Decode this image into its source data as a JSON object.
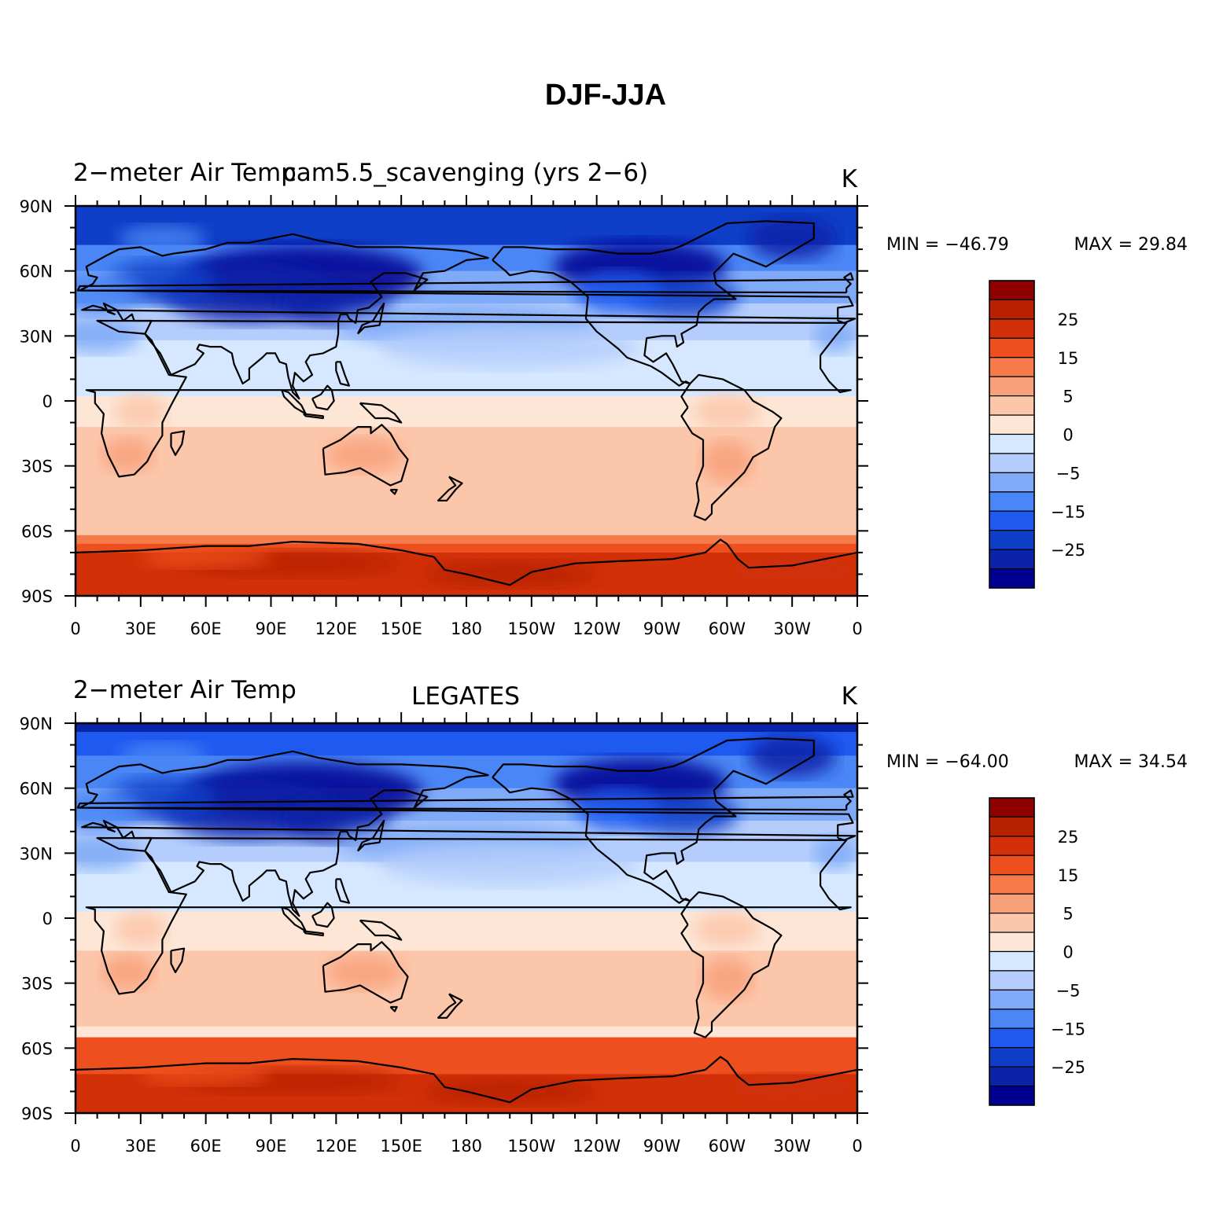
{
  "figure": {
    "title": "DJF-JJA"
  },
  "palette": [
    "#000090",
    "#0a23a8",
    "#0f3ec8",
    "#1e5af0",
    "#4a86f5",
    "#7faaf7",
    "#b4cdfc",
    "#d6e8ff",
    "#fde6d6",
    "#fcc6aa",
    "#f8a07a",
    "#f67a4a",
    "#ee4f1e",
    "#d13008",
    "#b82100",
    "#8f0000"
  ],
  "colorbar_labels": [
    "25",
    "15",
    "5",
    "0",
    "−5",
    "−15",
    "−25"
  ],
  "lon_ticks": [
    "0",
    "30E",
    "60E",
    "90E",
    "120E",
    "150E",
    "180",
    "150W",
    "120W",
    "90W",
    "60W",
    "30W",
    "0"
  ],
  "lat_ticks": [
    "90N",
    "60N",
    "30N",
    "0",
    "30S",
    "60S",
    "90S"
  ],
  "panels": [
    {
      "left_title": "2−meter Air Temp",
      "center_title": "cam5.5_scavenging (yrs 2−6)",
      "units": "K",
      "min_label": "MIN = −46.79",
      "max_label": "MAX =   29.84"
    },
    {
      "left_title": "2−meter Air Temp",
      "center_title": "LEGATES",
      "units": "K",
      "min_label": "MIN = −64.00",
      "max_label": "MAX =   34.54"
    }
  ],
  "chart_data": {
    "type": "heatmap",
    "title": "DJF-JJA",
    "variable": "2-meter Air Temp",
    "units": "K",
    "x_ticks": [
      "0",
      "30E",
      "60E",
      "90E",
      "120E",
      "150E",
      "180",
      "150W",
      "120W",
      "90W",
      "60W",
      "30W",
      "0"
    ],
    "y_ticks": [
      "90N",
      "60N",
      "30N",
      "0",
      "30S",
      "60S",
      "90S"
    ],
    "colorbar_levels": [
      -30,
      -25,
      -20,
      -15,
      -10,
      -5,
      -2,
      0,
      2,
      5,
      10,
      15,
      20,
      25,
      30
    ],
    "colorbar_labels": [
      "25",
      "15",
      "5",
      "0",
      "-5",
      "-15",
      "-25"
    ],
    "panels": [
      {
        "name": "cam5.5_scavenging (yrs 2-6)",
        "min": -46.79,
        "max": 29.84
      },
      {
        "name": "LEGATES",
        "min": -64.0,
        "max": 34.54
      }
    ]
  }
}
